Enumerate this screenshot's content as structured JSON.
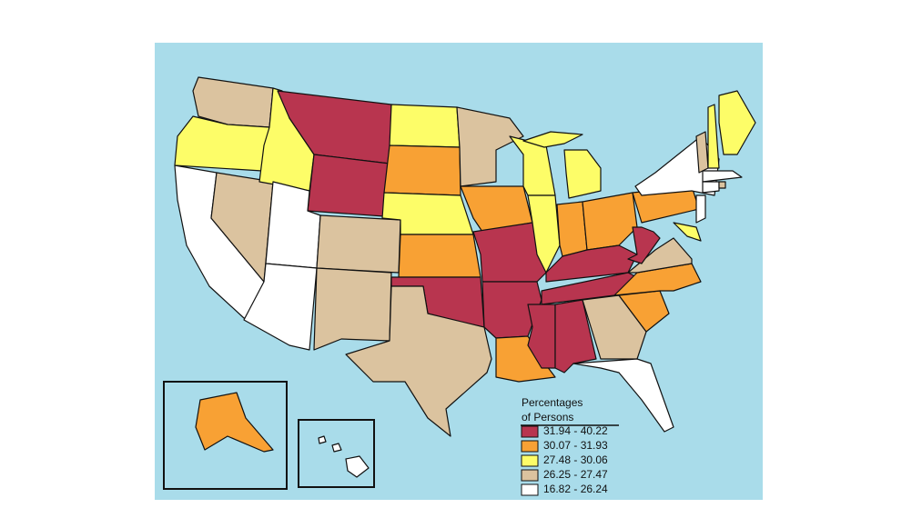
{
  "legend": {
    "title_lines": [
      "Percentages",
      "of Persons"
    ],
    "items": [
      {
        "label": "31.94 - 40.22",
        "color": "#b8354f"
      },
      {
        "label": "30.07 - 31.93",
        "color": "#f8a134"
      },
      {
        "label": "27.48 - 30.06",
        "color": "#fdfd68"
      },
      {
        "label": "26.25 - 27.47",
        "color": "#dbc39f"
      },
      {
        "label": "16.82 - 26.24",
        "color": "#ffffff"
      }
    ]
  }
}
